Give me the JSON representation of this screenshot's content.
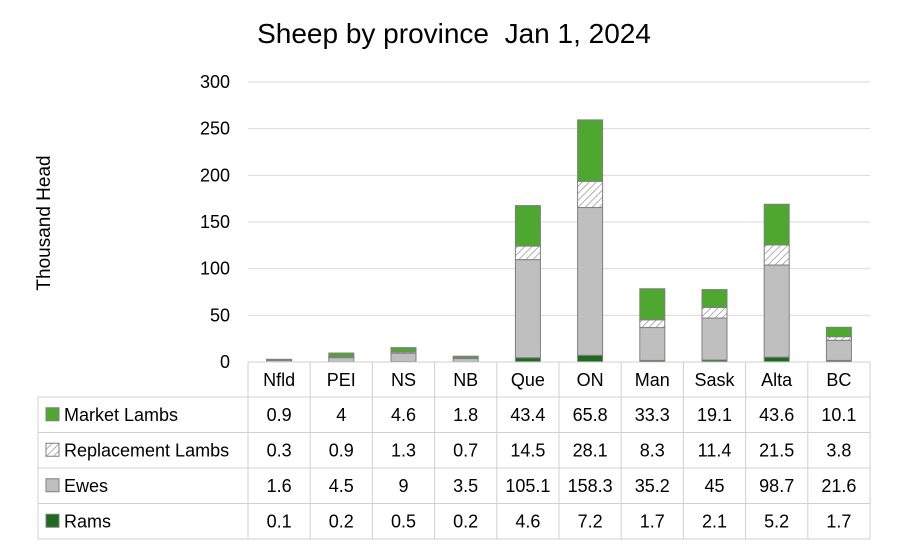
{
  "chart_data": {
    "type": "bar",
    "stacked": true,
    "title": "Sheep by province  Jan 1, 2024",
    "ylabel": "Thousand Head",
    "xlabel": "",
    "ylim": [
      0,
      300
    ],
    "yticks": [
      0,
      50,
      100,
      150,
      200,
      250,
      300
    ],
    "grid": true,
    "legend": "data-table-left",
    "categories": [
      "Nfld",
      "PEI",
      "NS",
      "NB",
      "Que",
      "ON",
      "Man",
      "Sask",
      "Alta",
      "BC"
    ],
    "series": [
      {
        "name": "Rams",
        "values": [
          0.1,
          0.2,
          0.5,
          0.2,
          4.6,
          7.2,
          1.7,
          2.1,
          5.2,
          1.7
        ],
        "color": "#1e6b1e",
        "pattern": "solid"
      },
      {
        "name": "Ewes",
        "values": [
          1.6,
          4.5,
          9,
          3.5,
          105.1,
          158.3,
          35.2,
          45,
          98.7,
          21.6
        ],
        "color": "#bfbfbf",
        "pattern": "solid"
      },
      {
        "name": "Replacement Lambs",
        "values": [
          0.3,
          0.9,
          1.3,
          0.7,
          14.5,
          28.1,
          8.3,
          11.4,
          21.5,
          3.8
        ],
        "color": "#ffffff",
        "pattern": "hatch"
      },
      {
        "name": "Market Lambs",
        "values": [
          0.9,
          4,
          4.6,
          1.8,
          43.4,
          65.8,
          33.3,
          19.1,
          43.6,
          10.1
        ],
        "color": "#4ea72e",
        "pattern": "solid"
      }
    ],
    "table_row_order": [
      "Market Lambs",
      "Replacement Lambs",
      "Ewes",
      "Rams"
    ]
  }
}
